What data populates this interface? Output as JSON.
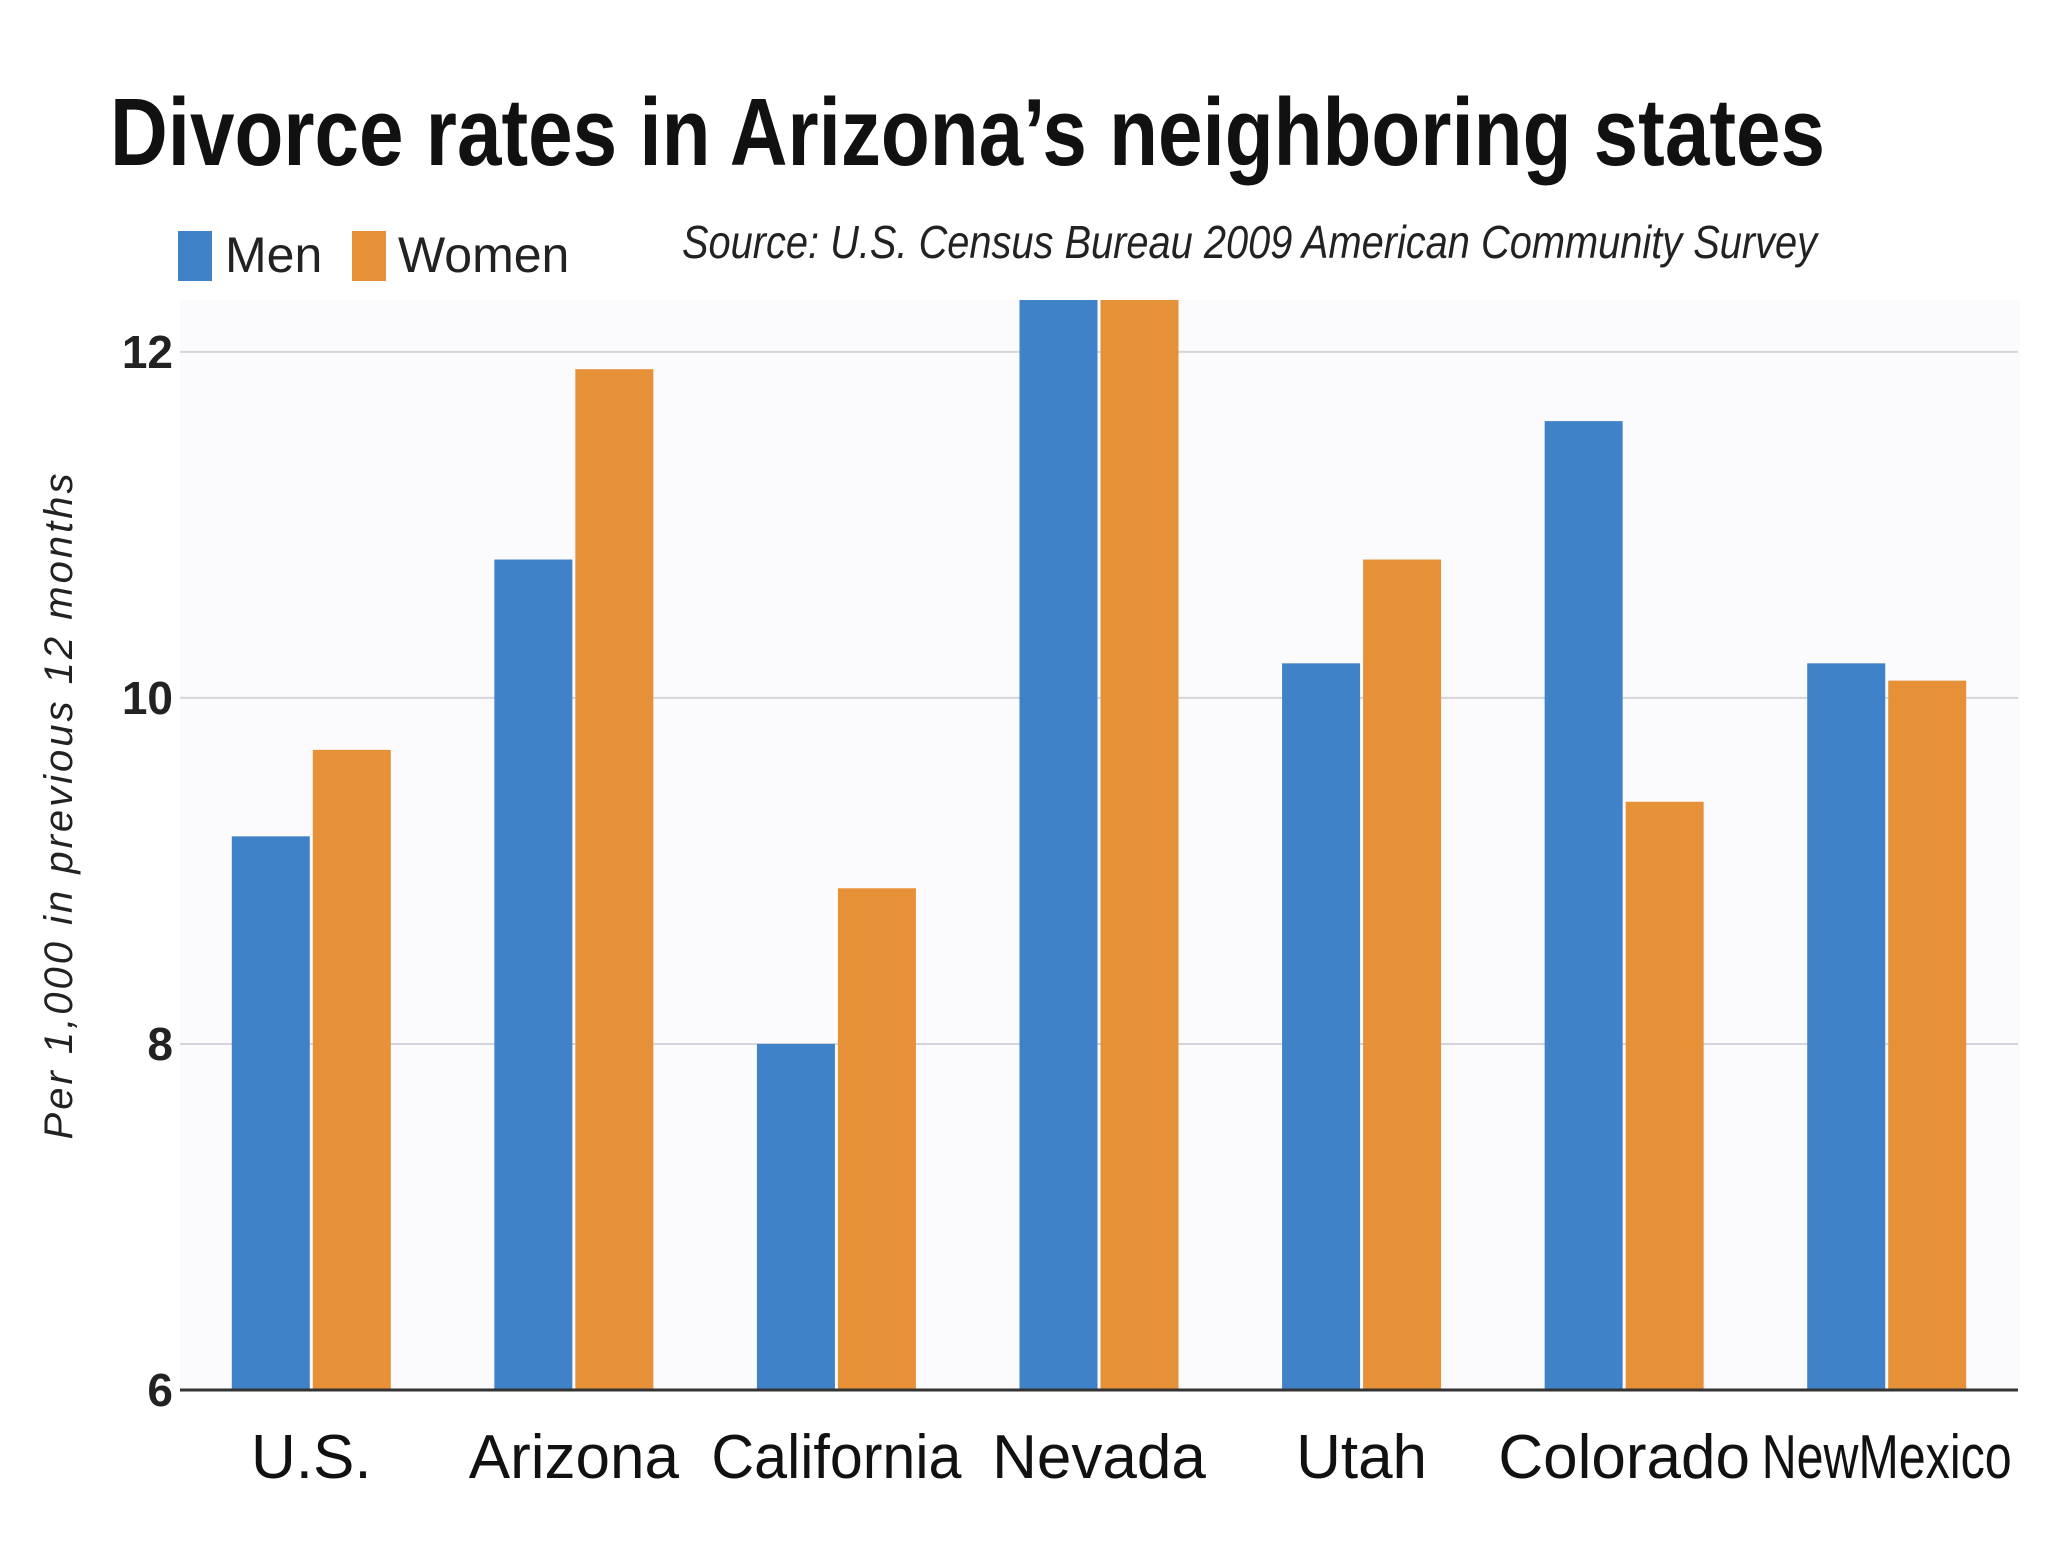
{
  "chart_data": {
    "type": "bar",
    "title": "Divorce rates in Arizona’s neighboring states",
    "source": "Source: U.S. Census Bureau 2009 American Community Survey",
    "ylabel": "Per 1,000 in previous 12 months",
    "xlabel": "",
    "ylim": [
      6,
      12.3
    ],
    "yticks": [
      6,
      8,
      10,
      12
    ],
    "grid": true,
    "legend_position": "top-left",
    "categories": [
      "U.S.",
      "Arizona",
      "California",
      "Nevada",
      "Utah",
      "Colorado",
      "NewMexico"
    ],
    "series": [
      {
        "name": "Men",
        "color": "#3f82c8",
        "values": [
          9.2,
          10.8,
          8.0,
          12.3,
          10.2,
          11.6,
          10.2
        ]
      },
      {
        "name": "Women",
        "color": "#e69138",
        "values": [
          9.7,
          11.9,
          8.9,
          12.3,
          10.8,
          9.4,
          10.1
        ]
      }
    ]
  }
}
